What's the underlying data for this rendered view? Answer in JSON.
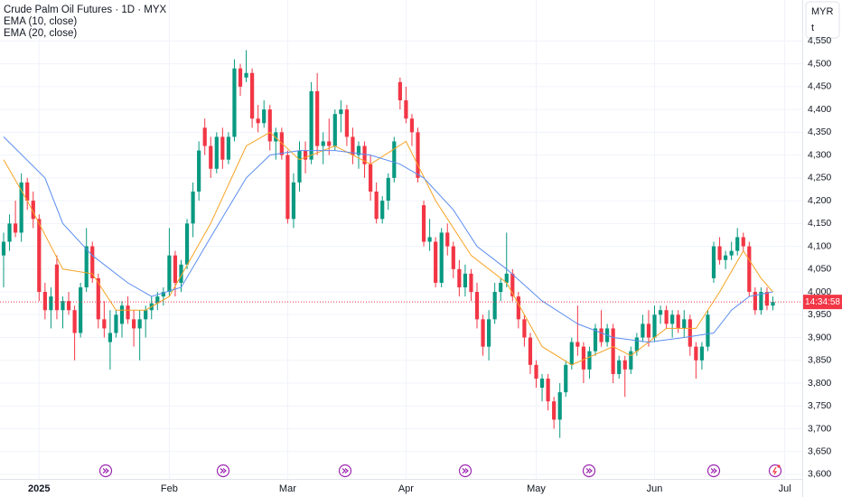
{
  "chart_data": {
    "type": "candlestick",
    "title": "Crude Palm Oil Futures · 1D · MYX",
    "indicators": [
      "EMA (10, close)",
      "EMA (20, close)"
    ],
    "currency": "MYR",
    "unit": "t",
    "countdown": "14:34:58",
    "last_price": 3978,
    "up_color": "#089981",
    "down_color": "#f23645",
    "ylim": [
      3590,
      4640
    ],
    "xlim": [
      -0.61,
      134.96
    ],
    "yticks": [
      {
        "value": 3600,
        "label": "3,600"
      },
      {
        "value": 3650,
        "label": "3,650"
      },
      {
        "value": 3700,
        "label": "3,700"
      },
      {
        "value": 3750,
        "label": "3,750"
      },
      {
        "value": 3800,
        "label": "3,800"
      },
      {
        "value": 3850,
        "label": "3,850"
      },
      {
        "value": 3900,
        "label": "3,900"
      },
      {
        "value": 3950,
        "label": "3,950"
      },
      {
        "value": 4000,
        "label": "4,000"
      },
      {
        "value": 4050,
        "label": "4,050"
      },
      {
        "value": 4100,
        "label": "4,100"
      },
      {
        "value": 4150,
        "label": "4,150"
      },
      {
        "value": 4200,
        "label": "4,200"
      },
      {
        "value": 4250,
        "label": "4,250"
      },
      {
        "value": 4300,
        "label": "4,300"
      },
      {
        "value": 4350,
        "label": "4,350"
      },
      {
        "value": 4400,
        "label": "4,400"
      },
      {
        "value": 4450,
        "label": "4,450"
      },
      {
        "value": 4500,
        "label": "4,500"
      },
      {
        "value": 4550,
        "label": "4,550"
      }
    ],
    "xticks": [
      {
        "value": 6,
        "label": "2025"
      },
      {
        "value": 28,
        "label": "Feb"
      },
      {
        "value": 48,
        "label": "Mar"
      },
      {
        "value": 68,
        "label": "Apr"
      },
      {
        "value": 90,
        "label": "May"
      },
      {
        "value": 110,
        "label": "Jun"
      },
      {
        "value": 132,
        "label": "Jul"
      }
    ],
    "ohlc": [
      [
        4080,
        4130,
        4010,
        4110
      ],
      [
        4110,
        4170,
        4090,
        4150
      ],
      [
        4150,
        4200,
        4120,
        4130
      ],
      [
        4130,
        4260,
        4110,
        4240
      ],
      [
        4240,
        4250,
        4180,
        4200
      ],
      [
        4200,
        4220,
        4140,
        4160
      ],
      [
        4160,
        4170,
        3980,
        4000
      ],
      [
        4000,
        4020,
        3940,
        3960
      ],
      [
        3960,
        4010,
        3920,
        3990
      ],
      [
        4060,
        4080,
        3940,
        3960
      ],
      [
        3960,
        3990,
        3920,
        3980
      ],
      [
        3980,
        4000,
        3950,
        3960
      ],
      [
        3960,
        3970,
        3850,
        3910
      ],
      [
        3910,
        4020,
        3900,
        4010
      ],
      [
        4010,
        4140,
        4000,
        4100
      ],
      [
        4100,
        4110,
        4020,
        4030
      ],
      [
        4030,
        4040,
        3920,
        3940
      ],
      [
        3940,
        3980,
        3900,
        3920
      ],
      [
        3890,
        3960,
        3830,
        3910
      ],
      [
        3910,
        3960,
        3900,
        3950
      ],
      [
        3930,
        3980,
        3900,
        3970
      ],
      [
        3970,
        3990,
        3930,
        3940
      ],
      [
        3940,
        3960,
        3880,
        3920
      ],
      [
        3920,
        3960,
        3850,
        3940
      ],
      [
        3940,
        3970,
        3900,
        3960
      ],
      [
        3960,
        3990,
        3940,
        3975
      ],
      [
        3975,
        4000,
        3960,
        3990
      ],
      [
        3990,
        4010,
        3970,
        4000
      ],
      [
        4000,
        4140,
        3990,
        4080
      ],
      [
        4080,
        4090,
        3990,
        4020
      ],
      [
        4020,
        4070,
        4000,
        4060
      ],
      [
        4060,
        4160,
        4050,
        4150
      ],
      [
        4150,
        4240,
        4120,
        4220
      ],
      [
        4220,
        4330,
        4200,
        4310
      ],
      [
        4360,
        4380,
        4300,
        4320
      ],
      [
        4320,
        4340,
        4250,
        4270
      ],
      [
        4270,
        4350,
        4260,
        4340
      ],
      [
        4340,
        4360,
        4270,
        4290
      ],
      [
        4290,
        4350,
        4280,
        4340
      ],
      [
        4340,
        4510,
        4330,
        4490
      ],
      [
        4490,
        4500,
        4430,
        4450
      ],
      [
        4470,
        4530,
        4460,
        4480
      ],
      [
        4480,
        4490,
        4360,
        4380
      ],
      [
        4380,
        4410,
        4350,
        4370
      ],
      [
        4370,
        4420,
        4360,
        4400
      ],
      [
        4400,
        4410,
        4310,
        4330
      ],
      [
        4330,
        4360,
        4290,
        4350
      ],
      [
        4350,
        4360,
        4290,
        4300
      ],
      [
        4300,
        4310,
        4150,
        4160
      ],
      [
        4160,
        4260,
        4140,
        4240
      ],
      [
        4240,
        4330,
        4220,
        4310
      ],
      [
        4310,
        4330,
        4260,
        4290
      ],
      [
        4290,
        4460,
        4280,
        4440
      ],
      [
        4440,
        4480,
        4300,
        4320
      ],
      [
        4320,
        4350,
        4280,
        4330
      ],
      [
        4330,
        4380,
        4300,
        4320
      ],
      [
        4320,
        4400,
        4310,
        4390
      ],
      [
        4390,
        4420,
        4350,
        4400
      ],
      [
        4400,
        4410,
        4320,
        4340
      ],
      [
        4340,
        4360,
        4280,
        4300
      ],
      [
        4300,
        4330,
        4270,
        4320
      ],
      [
        4320,
        4330,
        4250,
        4280
      ],
      [
        4280,
        4300,
        4200,
        4220
      ],
      [
        4220,
        4240,
        4150,
        4160
      ],
      [
        4160,
        4210,
        4150,
        4200
      ],
      [
        4200,
        4260,
        4180,
        4250
      ],
      [
        4250,
        4340,
        4240,
        4330
      ],
      [
        4460,
        4470,
        4400,
        4420
      ],
      [
        4420,
        4450,
        4370,
        4380
      ],
      [
        4380,
        4390,
        4320,
        4350
      ],
      [
        4350,
        4360,
        4240,
        4250
      ],
      [
        4190,
        4200,
        4100,
        4110
      ],
      [
        4110,
        4160,
        4090,
        4120
      ],
      [
        4110,
        4120,
        4010,
        4020
      ],
      [
        4020,
        4140,
        4010,
        4130
      ],
      [
        4130,
        4150,
        4080,
        4100
      ],
      [
        4100,
        4110,
        4030,
        4050
      ],
      [
        4050,
        4070,
        3990,
        4010
      ],
      [
        4010,
        4060,
        3990,
        4040
      ],
      [
        4040,
        4050,
        3980,
        4000
      ],
      [
        4000,
        4020,
        3920,
        3940
      ],
      [
        3940,
        3950,
        3860,
        3880
      ],
      [
        3880,
        3960,
        3850,
        3940
      ],
      [
        3940,
        4020,
        3930,
        4000
      ],
      [
        4000,
        4030,
        3980,
        4020
      ],
      [
        4020,
        4130,
        4010,
        4040
      ],
      [
        4040,
        4050,
        3980,
        3990
      ],
      [
        3990,
        4000,
        3920,
        3940
      ],
      [
        3940,
        3950,
        3880,
        3900
      ],
      [
        3900,
        3910,
        3820,
        3840
      ],
      [
        3840,
        3850,
        3790,
        3810
      ],
      [
        3790,
        3820,
        3760,
        3810
      ],
      [
        3810,
        3820,
        3740,
        3760
      ],
      [
        3760,
        3770,
        3700,
        3720
      ],
      [
        3720,
        3800,
        3680,
        3780
      ],
      [
        3780,
        3850,
        3770,
        3840
      ],
      [
        3840,
        3900,
        3830,
        3890
      ],
      [
        3890,
        3970,
        3860,
        3880
      ],
      [
        3880,
        3890,
        3800,
        3830
      ],
      [
        3830,
        3880,
        3810,
        3870
      ],
      [
        3870,
        3930,
        3860,
        3920
      ],
      [
        3920,
        3960,
        3880,
        3890
      ],
      [
        3890,
        3930,
        3880,
        3920
      ],
      [
        3920,
        3930,
        3800,
        3820
      ],
      [
        3820,
        3860,
        3810,
        3850
      ],
      [
        3850,
        3860,
        3770,
        3830
      ],
      [
        3830,
        3880,
        3820,
        3870
      ],
      [
        3870,
        3910,
        3860,
        3900
      ],
      [
        3900,
        3950,
        3890,
        3930
      ],
      [
        3930,
        3960,
        3880,
        3900
      ],
      [
        3900,
        3970,
        3890,
        3950
      ],
      [
        3950,
        3970,
        3930,
        3960
      ],
      [
        3960,
        3970,
        3920,
        3930
      ],
      [
        3930,
        3960,
        3900,
        3950
      ],
      [
        3950,
        3960,
        3910,
        3920
      ],
      [
        3920,
        3960,
        3900,
        3940
      ],
      [
        3940,
        3950,
        3860,
        3880
      ],
      [
        3880,
        3890,
        3810,
        3850
      ],
      [
        3850,
        3890,
        3830,
        3880
      ],
      [
        3880,
        3960,
        3870,
        3950
      ],
      [
        4030,
        4110,
        4020,
        4100
      ],
      [
        4100,
        4120,
        4060,
        4070
      ],
      [
        4070,
        4090,
        4050,
        4080
      ],
      [
        4080,
        4110,
        4070,
        4090
      ],
      [
        4090,
        4140,
        4080,
        4120
      ],
      [
        4120,
        4130,
        4090,
        4100
      ],
      [
        4100,
        4110,
        3990,
        4000
      ],
      [
        4000,
        4010,
        3950,
        3960
      ],
      [
        3960,
        4010,
        3950,
        4000
      ],
      [
        4000,
        4010,
        3960,
        3970
      ],
      [
        3970,
        3990,
        3960,
        3978
      ]
    ],
    "series": [
      {
        "name": "EMA (10, close)",
        "color": "#f7a325",
        "x": [
          0,
          4,
          6,
          10,
          15,
          19,
          24,
          28,
          35,
          41,
          45,
          50,
          56,
          62,
          68,
          73,
          79,
          85,
          91,
          96,
          103,
          106,
          112,
          117,
          121,
          125,
          128,
          130
        ],
        "values": [
          4290,
          4200,
          4150,
          4050,
          4040,
          3960,
          3960,
          3990,
          4150,
          4320,
          4350,
          4290,
          4320,
          4280,
          4330,
          4200,
          4080,
          4020,
          3880,
          3840,
          3880,
          3860,
          3920,
          3920,
          4000,
          4090,
          4030,
          4000
        ]
      },
      {
        "name": "EMA (20, close)",
        "color": "#5b8def",
        "x": [
          0,
          7,
          10,
          15,
          21,
          25,
          30,
          35,
          41,
          45,
          50,
          56,
          62,
          67,
          71,
          76,
          80,
          85,
          91,
          97,
          103,
          109,
          115,
          120,
          123,
          126,
          130
        ],
        "values": [
          4340,
          4250,
          4150,
          4080,
          4020,
          3990,
          4010,
          4120,
          4250,
          4300,
          4310,
          4310,
          4300,
          4280,
          4250,
          4180,
          4100,
          4050,
          3980,
          3930,
          3900,
          3890,
          3900,
          3910,
          3960,
          3990,
          4000
        ]
      }
    ]
  }
}
